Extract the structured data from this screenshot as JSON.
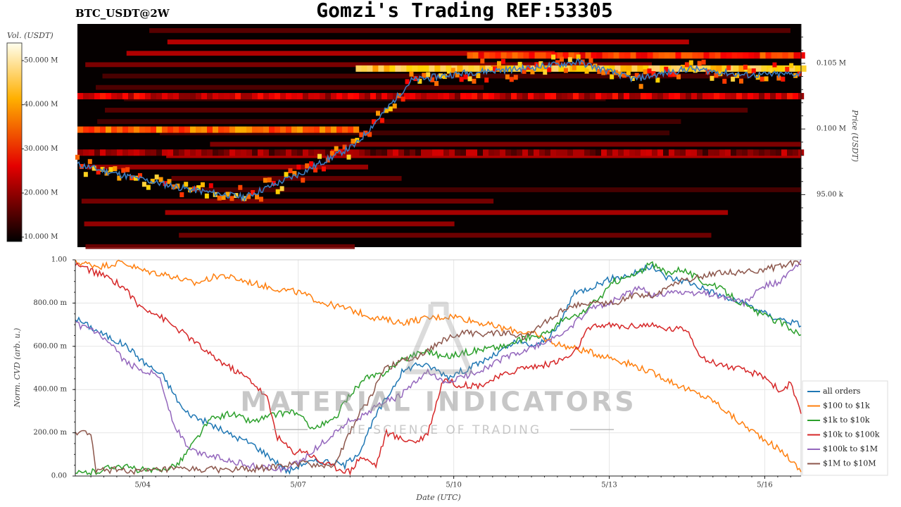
{
  "header": {
    "pair": "BTC_USDT@2W",
    "title": "Gomzi's Trading REF:53305"
  },
  "watermark": {
    "main": "MATERIAL INDICATORS",
    "tagline": "THE SCIENCE OF TRADING"
  },
  "colors": {
    "background": "#ffffff",
    "heatmap_bg": "#050000",
    "price_line": "#3a7bbf",
    "grid": "#e6e6e6"
  },
  "chart_data": [
    {
      "type": "heatmap",
      "colorbar": {
        "label": "Vol. (USDT)",
        "ticks": [
          "10.000 M",
          "20.000 M",
          "30.000 M",
          "40.000 M",
          "50.000 M"
        ],
        "tick_values": [
          10,
          20,
          30,
          40,
          50
        ],
        "range": [
          9,
          54
        ],
        "colormap": "hot"
      },
      "ylabel": "Price (USDT)",
      "ylim": [
        91000,
        108000
      ],
      "y_ticks": [
        "95.00 k",
        "0.100 M",
        "0.105 M"
      ],
      "y_tick_values": [
        95000,
        100000,
        105000
      ],
      "price_series": {
        "x": [
          "5/03",
          "5/04",
          "5/05",
          "5/06",
          "5/07",
          "5/08",
          "5/09",
          "5/10",
          "5/11",
          "5/12",
          "5/13",
          "5/14",
          "5/15",
          "5/16"
        ],
        "values": [
          97300,
          96300,
          95400,
          94800,
          96600,
          98800,
          103700,
          104300,
          104600,
          105100,
          103800,
          104600,
          104100,
          104200
        ]
      },
      "bands": [
        {
          "price": 99950,
          "from": "5/03",
          "to": "5/08",
          "intensity": 0.55
        },
        {
          "price": 104600,
          "from": "5/08",
          "to": "5/16",
          "intensity": 0.75
        },
        {
          "price": 105600,
          "from": "5/10",
          "to": "5/16",
          "intensity": 0.45
        },
        {
          "price": 102500,
          "from": "5/03",
          "to": "5/16",
          "intensity": 0.3
        },
        {
          "price": 98200,
          "from": "5/03",
          "to": "5/16",
          "intensity": 0.2
        }
      ]
    },
    {
      "type": "line",
      "xlabel": "Date (UTC)",
      "ylabel": "Norm. CVD (arb. u.)",
      "ylim": [
        0,
        1
      ],
      "y_ticks": [
        "0.00",
        "200.00 m",
        "400.00 m",
        "600.00 m",
        "800.00 m",
        "1.00"
      ],
      "y_tick_values": [
        0,
        0.2,
        0.4,
        0.6,
        0.8,
        1.0
      ],
      "x_ticks": [
        "5/04",
        "5/07",
        "5/10",
        "5/13",
        "5/16"
      ],
      "x_tick_values": [
        4,
        7,
        10,
        13,
        16
      ],
      "x_range": [
        2.7,
        16.7
      ],
      "grid": true,
      "legend_position": "bottom-right",
      "series": [
        {
          "name": "all orders",
          "color": "#1f77b4",
          "x": [
            2.7,
            3.2,
            3.7,
            4.0,
            4.4,
            4.8,
            5.3,
            5.7,
            6.1,
            6.5,
            6.8,
            7.1,
            7.5,
            7.9,
            8.2,
            8.5,
            8.7,
            9.0,
            9.3,
            9.6,
            9.9,
            10.3,
            10.8,
            11.2,
            11.6,
            12.0,
            12.3,
            12.6,
            13.0,
            13.4,
            13.8,
            14.1,
            14.5,
            14.9,
            15.3,
            15.7,
            16.1,
            16.4,
            16.7
          ],
          "values": [
            0.73,
            0.66,
            0.6,
            0.53,
            0.46,
            0.3,
            0.24,
            0.19,
            0.15,
            0.08,
            0.02,
            0.06,
            0.07,
            0.05,
            0.12,
            0.28,
            0.36,
            0.48,
            0.52,
            0.5,
            0.46,
            0.5,
            0.56,
            0.62,
            0.6,
            0.68,
            0.84,
            0.87,
            0.91,
            0.93,
            0.97,
            0.92,
            0.9,
            0.86,
            0.82,
            0.79,
            0.74,
            0.72,
            0.7
          ]
        },
        {
          "name": "$100 to $1k",
          "color": "#ff7f0e",
          "x": [
            2.7,
            3.2,
            3.6,
            4.0,
            4.5,
            5.0,
            5.5,
            6.0,
            6.5,
            7.0,
            7.5,
            8.0,
            8.5,
            9.0,
            9.5,
            10.0,
            10.5,
            11.0,
            11.5,
            12.0,
            12.5,
            13.0,
            13.5,
            14.0,
            14.5,
            15.0,
            15.5,
            16.0,
            16.4,
            16.7
          ],
          "values": [
            0.99,
            0.97,
            0.99,
            0.95,
            0.93,
            0.89,
            0.93,
            0.9,
            0.87,
            0.85,
            0.8,
            0.77,
            0.73,
            0.71,
            0.73,
            0.74,
            0.71,
            0.68,
            0.66,
            0.61,
            0.58,
            0.55,
            0.51,
            0.46,
            0.4,
            0.35,
            0.25,
            0.17,
            0.1,
            0.02
          ]
        },
        {
          "name": "$1k to $10k",
          "color": "#2ca02c",
          "x": [
            2.7,
            3.1,
            3.5,
            3.9,
            4.3,
            4.7,
            5.0,
            5.3,
            5.7,
            6.1,
            6.5,
            6.9,
            7.3,
            7.7,
            8.0,
            8.3,
            8.6,
            8.9,
            9.2,
            9.5,
            9.8,
            10.2,
            10.6,
            11.0,
            11.4,
            11.8,
            12.1,
            12.4,
            12.8,
            13.1,
            13.5,
            13.8,
            14.1,
            14.4,
            14.8,
            15.2,
            15.6,
            16.0,
            16.4,
            16.7
          ],
          "values": [
            0.01,
            0.02,
            0.05,
            0.03,
            0.02,
            0.06,
            0.16,
            0.26,
            0.29,
            0.25,
            0.28,
            0.3,
            0.22,
            0.26,
            0.38,
            0.45,
            0.47,
            0.52,
            0.56,
            0.58,
            0.55,
            0.57,
            0.59,
            0.6,
            0.64,
            0.66,
            0.72,
            0.74,
            0.82,
            0.9,
            0.93,
            0.98,
            0.94,
            0.96,
            0.9,
            0.86,
            0.79,
            0.74,
            0.7,
            0.65
          ]
        },
        {
          "name": "$10k to $100k",
          "color": "#d62728",
          "x": [
            2.7,
            3.0,
            3.4,
            3.7,
            3.9,
            4.2,
            4.5,
            4.9,
            5.3,
            5.7,
            6.1,
            6.4,
            6.6,
            6.9,
            7.1,
            7.4,
            7.7,
            8.0,
            8.2,
            8.5,
            8.7,
            9.0,
            9.3,
            9.5,
            9.8,
            10.1,
            10.5,
            10.9,
            11.3,
            11.7,
            12.0,
            12.3,
            12.6,
            12.9,
            13.3,
            13.7,
            14.1,
            14.5,
            14.8,
            15.1,
            15.4,
            15.7,
            16.0,
            16.3,
            16.5,
            16.7
          ],
          "values": [
            0.98,
            0.95,
            0.91,
            0.86,
            0.79,
            0.76,
            0.71,
            0.64,
            0.56,
            0.5,
            0.44,
            0.36,
            0.18,
            0.11,
            0.12,
            0.07,
            0.04,
            0.02,
            0.09,
            0.05,
            0.2,
            0.17,
            0.16,
            0.2,
            0.45,
            0.42,
            0.42,
            0.46,
            0.5,
            0.51,
            0.53,
            0.56,
            0.68,
            0.7,
            0.69,
            0.7,
            0.68,
            0.68,
            0.54,
            0.52,
            0.5,
            0.48,
            0.46,
            0.39,
            0.43,
            0.28
          ]
        },
        {
          "name": "$100k to $1M",
          "color": "#9467bd",
          "x": [
            2.7,
            3.0,
            3.4,
            3.7,
            4.0,
            4.3,
            4.6,
            4.9,
            5.2,
            5.6,
            6.0,
            6.4,
            6.7,
            7.0,
            7.4,
            7.7,
            8.0,
            8.3,
            8.6,
            8.9,
            9.2,
            9.5,
            9.8,
            10.2,
            10.6,
            11.0,
            11.4,
            11.8,
            12.1,
            12.4,
            12.7,
            13.0,
            13.3,
            13.6,
            13.9,
            14.2,
            14.5,
            14.8,
            15.2,
            15.6,
            16.0,
            16.3,
            16.7
          ],
          "values": [
            0.7,
            0.68,
            0.6,
            0.52,
            0.49,
            0.47,
            0.24,
            0.12,
            0.1,
            0.08,
            0.05,
            0.04,
            0.03,
            0.06,
            0.14,
            0.2,
            0.26,
            0.28,
            0.34,
            0.36,
            0.42,
            0.48,
            0.43,
            0.46,
            0.5,
            0.55,
            0.58,
            0.62,
            0.66,
            0.72,
            0.78,
            0.8,
            0.84,
            0.87,
            0.83,
            0.86,
            0.84,
            0.85,
            0.83,
            0.8,
            0.88,
            0.9,
            0.99
          ]
        },
        {
          "name": "$1M to $10M",
          "color": "#8c564b",
          "x": [
            2.7,
            3.0,
            3.1,
            3.5,
            4.0,
            4.5,
            5.0,
            5.5,
            6.0,
            6.5,
            6.8,
            7.1,
            7.4,
            7.7,
            8.0,
            8.2,
            8.4,
            8.6,
            9.0,
            9.3,
            9.6,
            9.9,
            10.2,
            10.6,
            11.0,
            11.4,
            11.8,
            12.2,
            12.5,
            12.8,
            13.1,
            13.5,
            13.9,
            14.3,
            14.7,
            15.0,
            15.4,
            15.8,
            16.1,
            16.4,
            16.7
          ],
          "values": [
            0.2,
            0.2,
            0.02,
            0.03,
            0.02,
            0.03,
            0.03,
            0.03,
            0.03,
            0.04,
            0.05,
            0.06,
            0.05,
            0.05,
            0.2,
            0.3,
            0.36,
            0.48,
            0.54,
            0.55,
            0.6,
            0.64,
            0.66,
            0.66,
            0.66,
            0.64,
            0.72,
            0.78,
            0.8,
            0.8,
            0.8,
            0.84,
            0.84,
            0.9,
            0.92,
            0.94,
            0.94,
            0.95,
            0.96,
            0.98,
            0.99
          ]
        }
      ]
    }
  ]
}
